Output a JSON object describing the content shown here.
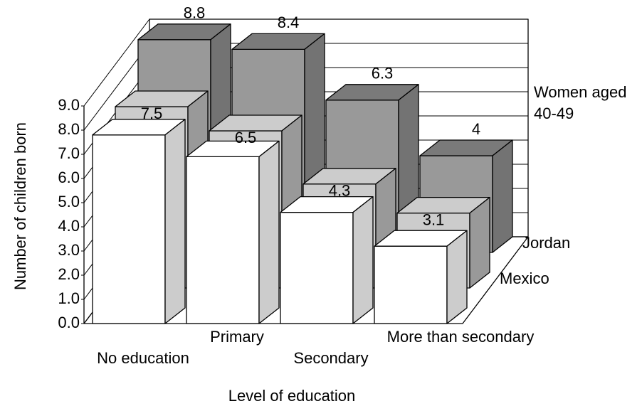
{
  "chart_data": {
    "type": "bar3d",
    "y_label": "Number of children born",
    "x_label": "Level of education",
    "annotation": "Women aged 40-49",
    "categories": [
      "No education",
      "Primary",
      "Secondary",
      "More than secondary"
    ],
    "series": [
      {
        "name": "Jordan",
        "color": "#999999",
        "values": [
          8.8,
          8.4,
          6.3,
          4.0
        ]
      },
      {
        "name": "Mexico",
        "color": "#cccccc",
        "values": [
          7.5,
          6.5,
          4.3,
          3.1
        ]
      },
      {
        "color": "#ffffff",
        "values": [
          7.8,
          6.9,
          4.6,
          3.2
        ]
      }
    ],
    "ylim": [
      0,
      9
    ],
    "yticks": [
      {
        "value": 0,
        "label": "0.0"
      },
      {
        "value": 1,
        "label": "1.0"
      },
      {
        "value": 2,
        "label": "2.0"
      },
      {
        "value": 3,
        "label": "3.0"
      },
      {
        "value": 4,
        "label": "4.0"
      },
      {
        "value": 5,
        "label": "5.0"
      },
      {
        "value": 6,
        "label": "6.0"
      },
      {
        "value": 7,
        "label": "7.0"
      },
      {
        "value": 8,
        "label": "8.0"
      },
      {
        "value": 9,
        "label": "9.0"
      }
    ],
    "grid": true
  }
}
